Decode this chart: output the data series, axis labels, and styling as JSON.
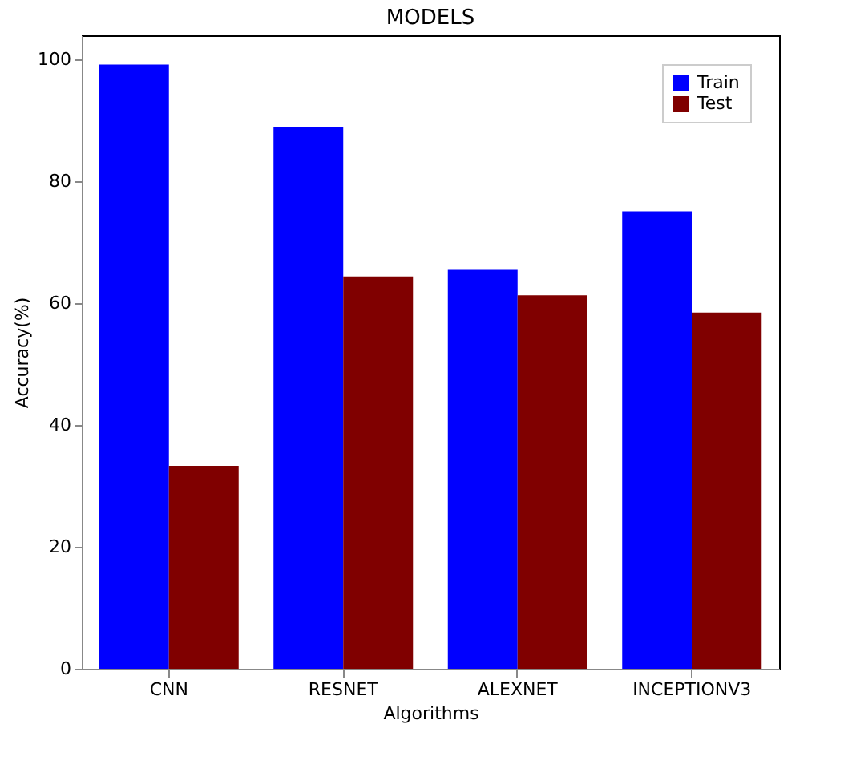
{
  "chart_data": {
    "type": "bar",
    "title": "MODELS",
    "xlabel": "Algorithms",
    "ylabel": "Accuracy(%)",
    "categories": [
      "CNN",
      "RESNET",
      "ALEXNET",
      "INCEPTIONV3"
    ],
    "series": [
      {
        "name": "Train",
        "color": "#0000ff",
        "values": [
          99.2,
          89,
          65.5,
          75.1
        ]
      },
      {
        "name": "Test",
        "color": "#800000",
        "values": [
          33.3,
          64.4,
          61.3,
          58.5
        ]
      }
    ],
    "ylim": [
      0,
      104
    ],
    "yticks": [
      0,
      20,
      40,
      60,
      80,
      100
    ],
    "legend": "top right"
  }
}
